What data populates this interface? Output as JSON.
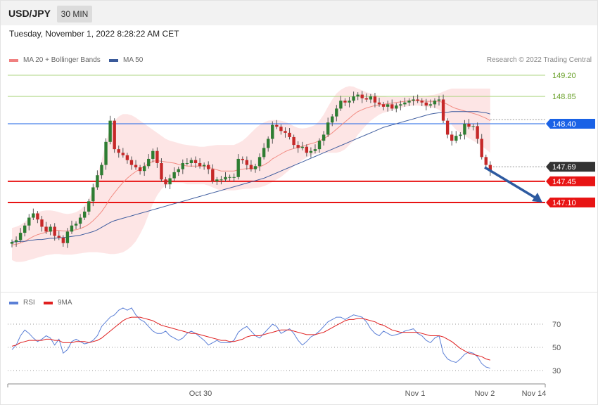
{
  "header": {
    "symbol": "USD/JPY",
    "timeframe": "30 MIN",
    "datetime": "Tuesday, November 1, 2022 8:28:22 AM CET",
    "credit": "Research © 2022 Trading Central"
  },
  "legend": {
    "price": [
      {
        "label": "MA 20 + Bollinger Bands",
        "color": "#f08080"
      },
      {
        "label": "MA 50",
        "color": "#3a5a9a"
      }
    ],
    "rsi": [
      {
        "label": "RSI",
        "color": "#5b7fd6"
      },
      {
        "label": "9MA",
        "color": "#e02020"
      }
    ]
  },
  "colors": {
    "up": "#2e7d32",
    "down": "#c62828",
    "band": "#fde0e0",
    "ma20": "#f28b82",
    "ma50": "#3f5d9f",
    "resistance_green": "#aed581",
    "level_blue": "#1a62e6",
    "level_red": "#e81414",
    "current": "#333333",
    "arrow": "#2d5aa0",
    "rsi": "#5b7fd6",
    "rsi_ma": "#e02020"
  },
  "chart_data": [
    {
      "type": "candlestick",
      "title": "USD/JPY 30 MIN",
      "ylim": [
        146.7,
        149.35
      ],
      "x_labels": [
        "Oct 30",
        "Nov 1",
        "Nov 2",
        "Nov 14"
      ],
      "current_price": "147.69",
      "levels": [
        {
          "value": 149.2,
          "label": "149.20",
          "kind": "resistance"
        },
        {
          "value": 148.85,
          "label": "148.85",
          "kind": "resistance"
        },
        {
          "value": 148.4,
          "label": "148.40",
          "kind": "pivot"
        },
        {
          "value": 147.69,
          "label": "147.69",
          "kind": "current"
        },
        {
          "value": 147.45,
          "label": "147.45",
          "kind": "support"
        },
        {
          "value": 147.1,
          "label": "147.10",
          "kind": "support"
        }
      ],
      "close": [
        146.45,
        146.48,
        146.6,
        146.72,
        146.85,
        146.92,
        146.82,
        146.7,
        146.62,
        146.7,
        146.55,
        146.52,
        146.43,
        146.62,
        146.72,
        146.75,
        146.85,
        146.95,
        147.12,
        147.35,
        147.55,
        147.72,
        148.1,
        148.45,
        147.98,
        147.92,
        147.88,
        147.8,
        147.72,
        147.68,
        147.62,
        147.7,
        147.82,
        147.95,
        147.75,
        147.48,
        147.4,
        147.5,
        147.6,
        147.65,
        147.75,
        147.75,
        147.8,
        147.75,
        147.7,
        147.72,
        147.65,
        147.45,
        147.48,
        147.48,
        147.52,
        147.52,
        147.52,
        147.82,
        147.8,
        147.72,
        147.65,
        147.7,
        147.85,
        148.0,
        148.15,
        148.38,
        148.35,
        148.28,
        148.25,
        148.18,
        148.05,
        148.0,
        148.02,
        147.92,
        147.95,
        147.98,
        148.12,
        148.22,
        148.42,
        148.52,
        148.65,
        148.78,
        148.75,
        148.78,
        148.85,
        148.88,
        148.82,
        148.8,
        148.85,
        148.75,
        148.72,
        148.68,
        148.72,
        148.65,
        148.7,
        148.72,
        148.75,
        148.78,
        148.8,
        148.78,
        148.75,
        148.7,
        148.72,
        148.78,
        148.8,
        148.45,
        148.22,
        148.12,
        148.2,
        148.22,
        148.4,
        148.35,
        148.36,
        148.15,
        147.85,
        147.72,
        147.62
      ],
      "ma20": [
        146.4,
        146.41,
        146.43,
        146.46,
        146.5,
        146.54,
        146.57,
        146.59,
        146.61,
        146.63,
        146.64,
        146.64,
        146.63,
        146.63,
        146.64,
        146.65,
        146.67,
        146.7,
        146.74,
        146.8,
        146.87,
        146.95,
        147.05,
        147.17,
        147.26,
        147.35,
        147.43,
        147.5,
        147.56,
        147.61,
        147.65,
        147.7,
        147.74,
        147.78,
        147.79,
        147.78,
        147.77,
        147.76,
        147.75,
        147.73,
        147.72,
        147.7,
        147.7,
        147.7,
        147.7,
        147.7,
        147.68,
        147.66,
        147.64,
        147.62,
        147.62,
        147.62,
        147.62,
        147.64,
        147.65,
        147.66,
        147.66,
        147.67,
        147.69,
        147.72,
        147.76,
        147.82,
        147.86,
        147.9,
        147.94,
        147.97,
        147.99,
        148.01,
        148.03,
        148.05,
        148.07,
        148.09,
        148.12,
        148.15,
        148.2,
        148.25,
        148.31,
        148.37,
        148.43,
        148.49,
        148.55,
        148.6,
        148.63,
        148.66,
        148.68,
        148.7,
        148.71,
        148.72,
        148.73,
        148.74,
        148.75,
        148.76,
        148.77,
        148.78,
        148.78,
        148.78,
        148.78,
        148.77,
        148.77,
        148.77,
        148.77,
        148.75,
        148.72,
        148.68,
        148.65,
        148.63,
        148.61,
        148.59,
        148.57,
        148.55,
        148.52,
        148.49,
        148.45
      ],
      "upper": [
        146.68,
        146.7,
        146.73,
        146.78,
        146.84,
        146.9,
        146.94,
        146.96,
        146.97,
        146.97,
        146.96,
        146.94,
        146.92,
        146.91,
        146.92,
        146.94,
        146.98,
        147.05,
        147.15,
        147.32,
        147.55,
        147.8,
        148.08,
        148.35,
        148.45,
        148.52,
        148.56,
        148.56,
        148.54,
        148.5,
        148.45,
        148.4,
        148.35,
        148.3,
        148.25,
        148.2,
        148.15,
        148.12,
        148.1,
        148.08,
        148.06,
        148.05,
        148.04,
        148.03,
        148.02,
        148.02,
        148.03,
        148.04,
        148.05,
        148.05,
        148.05,
        148.05,
        148.05,
        148.08,
        148.12,
        148.18,
        148.25,
        148.32,
        148.38,
        148.42,
        148.45,
        148.46,
        148.46,
        148.45,
        148.43,
        148.4,
        148.36,
        148.33,
        148.32,
        148.33,
        148.35,
        148.38,
        148.45,
        148.55,
        148.68,
        148.8,
        148.9,
        148.96,
        149.0,
        149.02,
        149.01,
        148.98,
        148.95,
        148.92,
        148.9,
        148.88,
        148.86,
        148.85,
        148.84,
        148.84,
        148.84,
        148.84,
        148.84,
        148.85,
        148.85,
        148.85,
        148.86,
        148.86,
        148.87,
        148.88,
        148.9,
        148.93,
        148.96,
        148.98,
        148.98,
        148.98,
        148.98,
        148.98,
        148.98,
        148.98,
        148.98,
        148.98,
        148.98
      ],
      "lower": [
        146.15,
        146.12,
        146.12,
        146.13,
        146.15,
        146.17,
        146.19,
        146.21,
        146.23,
        146.24,
        146.25,
        146.25,
        146.24,
        146.24,
        146.24,
        146.25,
        146.26,
        146.27,
        146.28,
        146.28,
        146.28,
        146.27,
        146.26,
        146.25,
        146.25,
        146.26,
        146.28,
        146.32,
        146.38,
        146.46,
        146.58,
        146.72,
        146.9,
        147.08,
        147.22,
        147.32,
        147.38,
        147.41,
        147.42,
        147.42,
        147.42,
        147.4,
        147.4,
        147.4,
        147.4,
        147.4,
        147.38,
        147.35,
        147.32,
        147.3,
        147.3,
        147.3,
        147.3,
        147.31,
        147.32,
        147.33,
        147.33,
        147.34,
        147.35,
        147.37,
        147.4,
        147.44,
        147.48,
        147.52,
        147.58,
        147.64,
        147.7,
        147.75,
        147.8,
        147.84,
        147.88,
        147.9,
        147.92,
        147.92,
        147.92,
        147.92,
        147.92,
        147.94,
        147.98,
        148.05,
        148.12,
        148.22,
        148.3,
        148.38,
        148.45,
        148.5,
        148.55,
        148.58,
        148.6,
        148.62,
        148.64,
        148.66,
        148.68,
        148.69,
        148.7,
        148.7,
        148.69,
        148.68,
        148.67,
        148.66,
        148.63,
        148.57,
        148.48,
        148.38,
        148.3,
        148.25,
        148.2,
        148.16,
        148.12,
        148.08,
        148.03,
        147.98,
        147.92
      ],
      "ma50": [
        146.45,
        146.45,
        146.46,
        146.46,
        146.47,
        146.48,
        146.49,
        146.49,
        146.5,
        146.51,
        146.51,
        146.52,
        146.52,
        146.53,
        146.54,
        146.55,
        146.56,
        146.58,
        146.6,
        146.62,
        146.65,
        146.69,
        146.73,
        146.77,
        146.8,
        146.82,
        146.84,
        146.86,
        146.88,
        146.9,
        146.92,
        146.94,
        146.96,
        146.98,
        147.0,
        147.02,
        147.04,
        147.06,
        147.08,
        147.1,
        147.12,
        147.14,
        147.16,
        147.18,
        147.2,
        147.22,
        147.24,
        147.26,
        147.28,
        147.3,
        147.32,
        147.34,
        147.36,
        147.38,
        147.4,
        147.42,
        147.44,
        147.46,
        147.48,
        147.5,
        147.53,
        147.56,
        147.59,
        147.62,
        147.65,
        147.68,
        147.71,
        147.74,
        147.77,
        147.8,
        147.83,
        147.86,
        147.89,
        147.92,
        147.95,
        147.98,
        148.01,
        148.04,
        148.07,
        148.1,
        148.13,
        148.16,
        148.19,
        148.22,
        148.25,
        148.28,
        148.31,
        148.34,
        148.36,
        148.38,
        148.4,
        148.42,
        148.44,
        148.46,
        148.48,
        148.5,
        148.52,
        148.54,
        148.56,
        148.57,
        148.58,
        148.59,
        148.59,
        148.6,
        148.6,
        148.6,
        148.6,
        148.6,
        148.6,
        148.6,
        148.59,
        148.58,
        148.56
      ]
    },
    {
      "type": "line",
      "title": "RSI",
      "ylim": [
        15,
        90
      ],
      "yticks": [
        70,
        50,
        30
      ],
      "x_labels": [
        "Oct 30",
        "Nov 1",
        "Nov 2",
        "Nov 14"
      ],
      "series": [
        {
          "name": "RSI",
          "values": [
            48,
            52,
            60,
            65,
            62,
            58,
            55,
            57,
            60,
            58,
            52,
            57,
            45,
            48,
            55,
            57,
            55,
            53,
            54,
            56,
            60,
            68,
            72,
            76,
            78,
            82,
            84,
            82,
            84,
            78,
            74,
            72,
            68,
            64,
            62,
            62,
            64,
            60,
            58,
            56,
            58,
            62,
            64,
            62,
            59,
            56,
            52,
            54,
            56,
            54,
            54,
            54,
            56,
            63,
            66,
            68,
            64,
            60,
            58,
            62,
            66,
            70,
            68,
            62,
            64,
            66,
            62,
            56,
            52,
            55,
            59,
            61,
            64,
            68,
            72,
            74,
            76,
            76,
            74,
            76,
            78,
            77,
            76,
            72,
            66,
            62,
            60,
            64,
            62,
            60,
            61,
            62,
            64,
            65,
            66,
            62,
            60,
            56,
            54,
            58,
            60,
            45,
            40,
            38,
            37,
            40,
            44,
            46,
            45,
            42,
            36,
            33,
            32
          ]
        },
        {
          "name": "9MA",
          "values": [
            51,
            52,
            54,
            55,
            56,
            56,
            56,
            56,
            57,
            57,
            56,
            56,
            54,
            54,
            54,
            55,
            55,
            55,
            54,
            55,
            56,
            58,
            61,
            64,
            67,
            70,
            73,
            75,
            76,
            76,
            76,
            75,
            74,
            73,
            71,
            69,
            68,
            67,
            66,
            65,
            64,
            63,
            62,
            62,
            61,
            60,
            59,
            58,
            57,
            56,
            56,
            55,
            55,
            56,
            57,
            59,
            60,
            60,
            60,
            61,
            62,
            63,
            64,
            65,
            65,
            65,
            64,
            63,
            62,
            61,
            61,
            61,
            62,
            63,
            65,
            67,
            69,
            71,
            73,
            74,
            74,
            75,
            75,
            74,
            73,
            72,
            70,
            69,
            67,
            65,
            64,
            63,
            63,
            63,
            63,
            63,
            62,
            61,
            60,
            60,
            60,
            59,
            57,
            55,
            52,
            49,
            47,
            45,
            44,
            43,
            42,
            40,
            39
          ]
        }
      ]
    }
  ]
}
